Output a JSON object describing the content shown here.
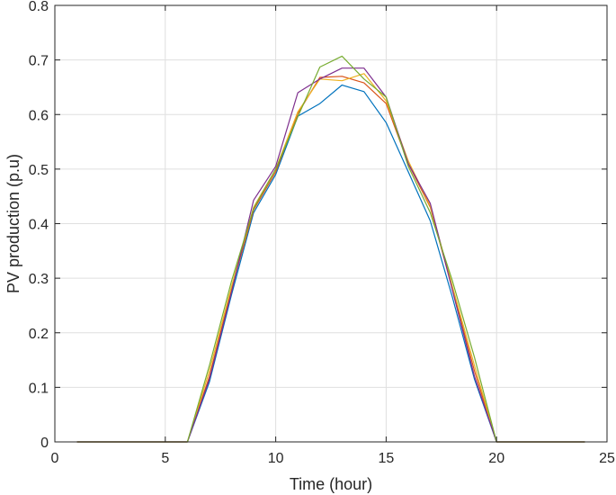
{
  "chart_data": {
    "type": "line",
    "xlabel": "Time (hour)",
    "ylabel": "PV production (p.u)",
    "xlim": [
      0,
      25
    ],
    "ylim": [
      0,
      0.8
    ],
    "xticks": [
      "0",
      "5",
      "10",
      "15",
      "20",
      "25"
    ],
    "yticks": [
      "0",
      "0.1",
      "0.2",
      "0.3",
      "0.4",
      "0.5",
      "0.6",
      "0.7",
      "0.8"
    ],
    "grid": true,
    "x": [
      1,
      2,
      3,
      4,
      5,
      6,
      7,
      8,
      9,
      10,
      11,
      12,
      13,
      14,
      15,
      16,
      17,
      18,
      19,
      20,
      21,
      22,
      23,
      24
    ],
    "series": [
      {
        "color": "#0072BD",
        "values": [
          0,
          0,
          0,
          0,
          0,
          0,
          0.11,
          0.27,
          0.42,
          0.49,
          0.597,
          0.62,
          0.654,
          0.642,
          0.585,
          0.495,
          0.405,
          0.265,
          0.115,
          0,
          0,
          0,
          0,
          0
        ]
      },
      {
        "color": "#D95319",
        "values": [
          0,
          0,
          0,
          0,
          0,
          0,
          0.12,
          0.28,
          0.425,
          0.495,
          0.602,
          0.668,
          0.67,
          0.658,
          0.62,
          0.51,
          0.43,
          0.28,
          0.13,
          0,
          0,
          0,
          0,
          0
        ]
      },
      {
        "color": "#EDB120",
        "values": [
          0,
          0,
          0,
          0,
          0,
          0,
          0.13,
          0.285,
          0.43,
          0.5,
          0.605,
          0.665,
          0.662,
          0.675,
          0.625,
          0.515,
          0.432,
          0.285,
          0.14,
          0,
          0,
          0,
          0,
          0
        ]
      },
      {
        "color": "#7E2F8E",
        "values": [
          0,
          0,
          0,
          0,
          0,
          0,
          0.115,
          0.275,
          0.443,
          0.505,
          0.64,
          0.665,
          0.685,
          0.685,
          0.632,
          0.51,
          0.437,
          0.278,
          0.12,
          0,
          0,
          0,
          0,
          0
        ]
      },
      {
        "color": "#77AC30",
        "values": [
          0,
          0,
          0,
          0,
          0,
          0,
          0.14,
          0.295,
          0.428,
          0.5,
          0.596,
          0.687,
          0.707,
          0.665,
          0.632,
          0.505,
          0.42,
          0.295,
          0.155,
          0,
          0,
          0,
          0,
          0
        ]
      }
    ]
  }
}
